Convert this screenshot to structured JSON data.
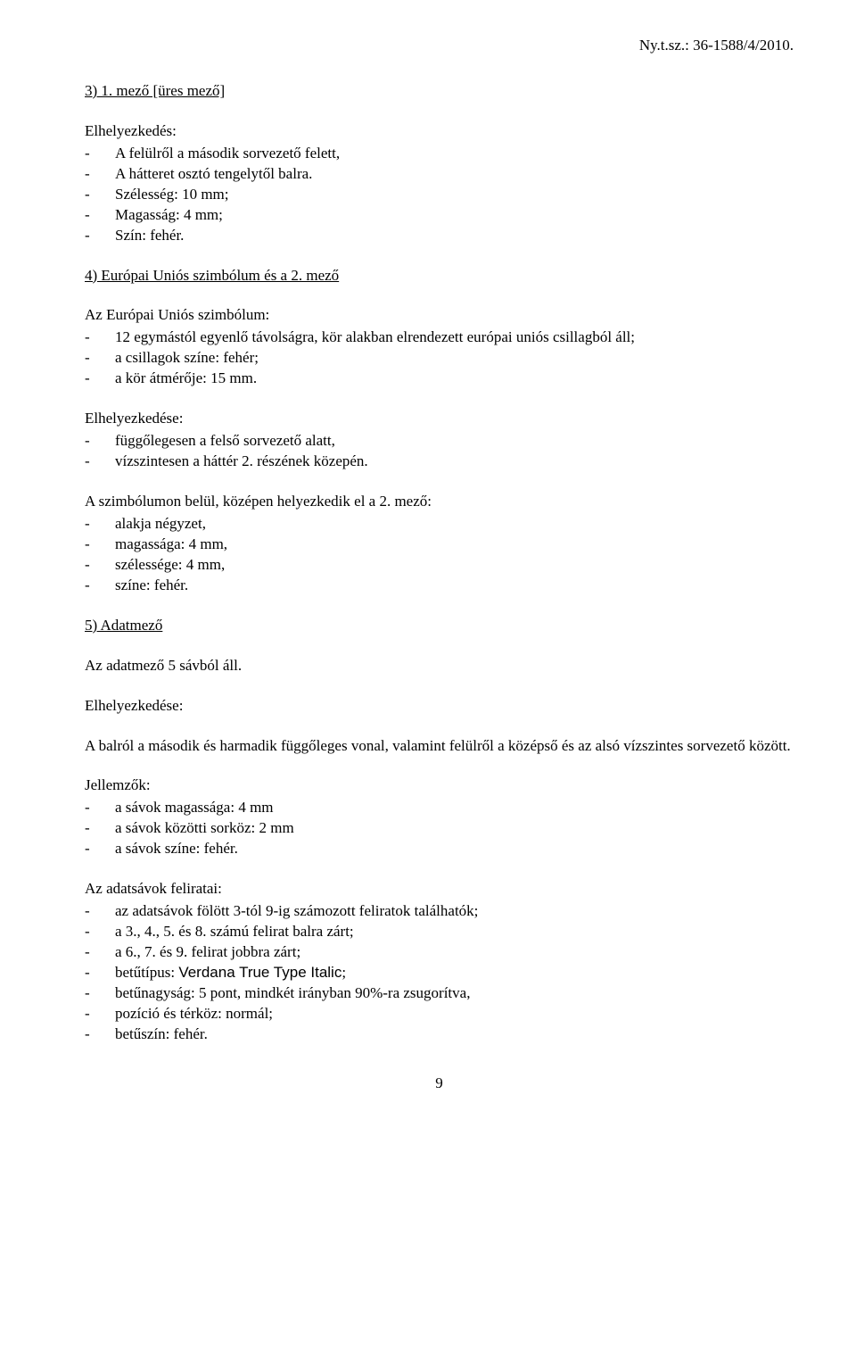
{
  "header": {
    "reference": "Ny.t.sz.: 36-1588/4/2010."
  },
  "section3": {
    "heading": "3) 1. mező [üres mező]",
    "label": "Elhelyezkedés:",
    "items": [
      "A felülről a második sorvezető felett,",
      "A hátteret osztó tengelytől balra.",
      "Szélesség: 10 mm;",
      "Magasság: 4 mm;",
      "Szín: fehér."
    ]
  },
  "section4": {
    "heading": "4) Európai Uniós szimbólum és a 2. mező",
    "label1": "Az Európai Uniós szimbólum:",
    "items1": [
      "12 egymástól egyenlő távolságra, kör alakban elrendezett európai uniós csillagból áll;",
      "a csillagok színe: fehér;",
      "a kör átmérője: 15 mm."
    ],
    "label2": "Elhelyezkedése:",
    "items2": [
      "függőlegesen a felső sorvezető alatt,",
      "vízszintesen a háttér 2. részének közepén."
    ],
    "para3": "A szimbólumon belül, középen helyezkedik el a 2. mező:",
    "items3": [
      "alakja négyzet,",
      "magassága: 4 mm,",
      "szélessége: 4 mm,",
      "színe: fehér."
    ]
  },
  "section5": {
    "heading": "5) Adatmező",
    "line1": "Az adatmező 5 sávból áll.",
    "label2": "Elhelyezkedése:",
    "para2": "A balról a második és harmadik függőleges vonal, valamint felülről a középső és az alsó vízszintes sorvezető között.",
    "label3": "Jellemzők:",
    "items3": [
      "a sávok magassága: 4 mm",
      "a sávok közötti sorköz: 2 mm",
      "a sávok színe: fehér."
    ],
    "label4": "Az adatsávok feliratai:",
    "items4": [
      {
        "pre": "az adatsávok fölött 3-tól 9-ig számozott feliratok találhatók;"
      },
      {
        "pre": "a 3., 4., 5. és 8. számú felirat balra zárt;"
      },
      {
        "pre": "a 6., 7. és 9. felirat jobbra zárt;"
      },
      {
        "pre": "betűtípus: ",
        "mid": "Verdana True Type Italic",
        "post": ";"
      },
      {
        "pre": "betűnagyság: 5 pont, mindkét irányban 90%-ra zsugorítva,"
      },
      {
        "pre": "pozíció és térköz: normál;"
      },
      {
        "pre": "betűszín: fehér."
      }
    ]
  },
  "pageNumber": "9"
}
